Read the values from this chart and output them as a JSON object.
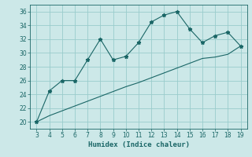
{
  "xlabel": "Humidex (Indice chaleur)",
  "bg_color": "#cce8e8",
  "grid_color": "#99cccc",
  "line_color": "#1a6666",
  "x_data": [
    3,
    4,
    5,
    6,
    7,
    8,
    9,
    10,
    11,
    12,
    13,
    14,
    15,
    16,
    17,
    18,
    19
  ],
  "y_curve": [
    20,
    24.5,
    26,
    26,
    29,
    32,
    29,
    29.5,
    31.5,
    34.5,
    35.5,
    36,
    33.5,
    31.5,
    32.5,
    33,
    31
  ],
  "y_line": [
    20,
    20.9,
    21.6,
    22.3,
    23.0,
    23.7,
    24.4,
    25.1,
    25.7,
    26.4,
    27.1,
    27.8,
    28.5,
    29.2,
    29.4,
    29.8,
    31.0
  ],
  "ylim": [
    19,
    37
  ],
  "xlim": [
    2.5,
    19.5
  ],
  "yticks": [
    20,
    22,
    24,
    26,
    28,
    30,
    32,
    34,
    36
  ],
  "xticks": [
    3,
    4,
    5,
    6,
    7,
    8,
    9,
    10,
    11,
    12,
    13,
    14,
    15,
    16,
    17,
    18,
    19
  ]
}
